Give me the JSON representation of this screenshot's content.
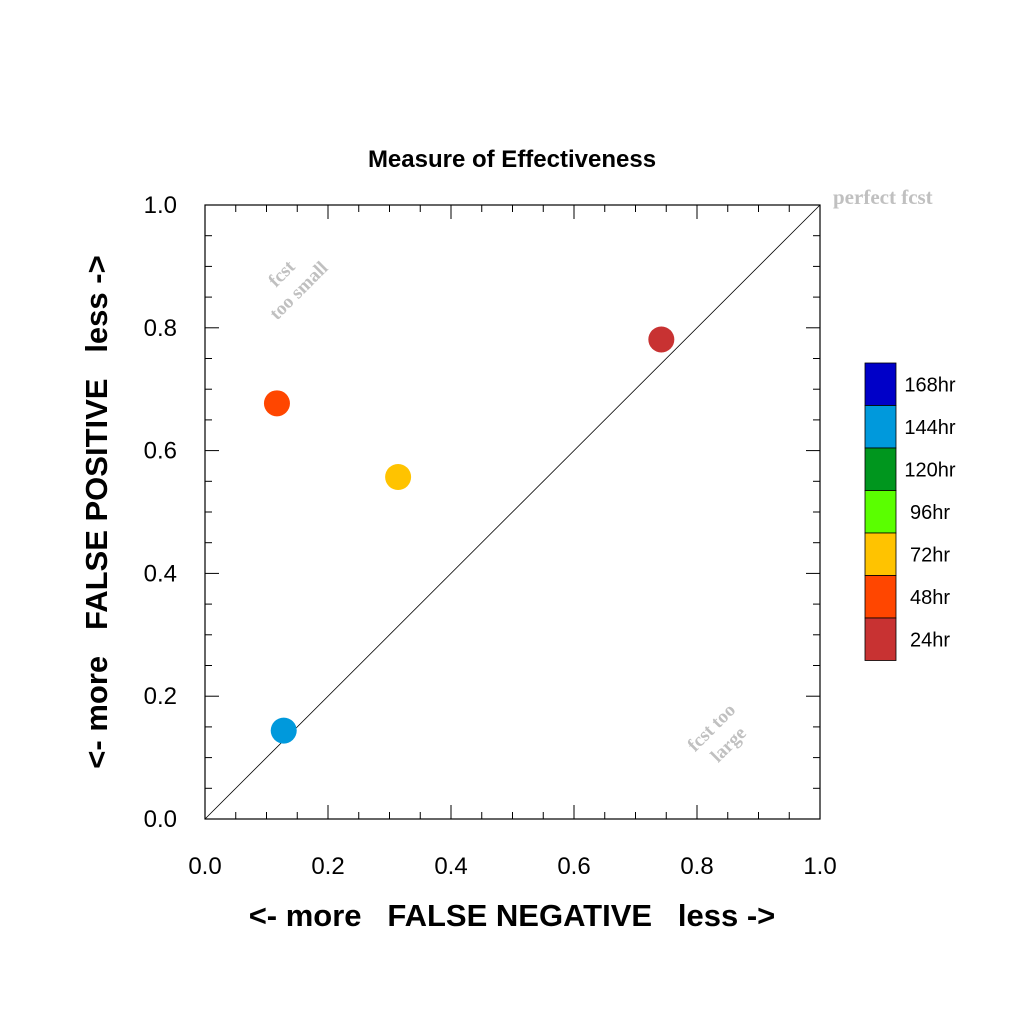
{
  "chart_data": {
    "type": "scatter",
    "title": "Measure of Effectiveness",
    "xlabel": "<- more   FALSE NEGATIVE   less ->",
    "ylabel": "<- more   FALSE POSITIVE   less ->",
    "xlim": [
      0.0,
      1.0
    ],
    "ylim": [
      0.0,
      1.0
    ],
    "x_ticks": [
      "0.0",
      "0.2",
      "0.4",
      "0.6",
      "0.8",
      "1.0"
    ],
    "y_ticks": [
      "0.0",
      "0.2",
      "0.4",
      "0.6",
      "0.8",
      "1.0"
    ],
    "x_tick_values": [
      0.0,
      0.2,
      0.4,
      0.6,
      0.8,
      1.0
    ],
    "y_tick_values": [
      0.0,
      0.2,
      0.4,
      0.6,
      0.8,
      1.0
    ],
    "grid": false,
    "diagonal_line": true,
    "legend_position": "right",
    "legend": [
      {
        "label": "168hr",
        "color": "#0000c8"
      },
      {
        "label": "144hr",
        "color": "#0099dc"
      },
      {
        "label": "120hr",
        "color": "#00961e"
      },
      {
        "label": "96hr",
        "color": "#5aff00"
      },
      {
        "label": "72hr",
        "color": "#ffc300"
      },
      {
        "label": "48hr",
        "color": "#ff4600"
      },
      {
        "label": "24hr",
        "color": "#c83232"
      }
    ],
    "points": [
      {
        "label": "24hr",
        "x": 0.742,
        "y": 0.781,
        "color": "#c83232"
      },
      {
        "label": "48hr",
        "x": 0.117,
        "y": 0.677,
        "color": "#ff4600"
      },
      {
        "label": "72hr",
        "x": 0.314,
        "y": 0.557,
        "color": "#ffc300"
      },
      {
        "label": "144hr",
        "x": 0.128,
        "y": 0.144,
        "color": "#0099dc"
      }
    ],
    "annotations": {
      "perfect": "perfect fcst",
      "too_small_1": "fcst",
      "too_small_2": "too small",
      "too_large_1": "fcst too",
      "too_large_2": "large"
    }
  }
}
